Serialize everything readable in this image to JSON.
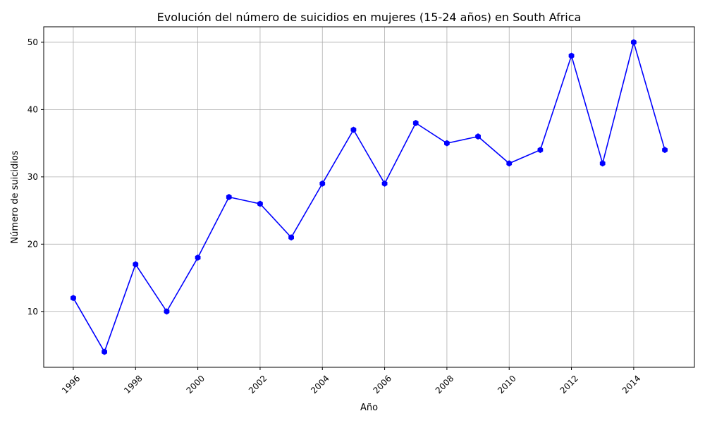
{
  "chart_data": {
    "type": "line",
    "title": "Evolución del número de suicidios en mujeres (15-24 años) en South Africa",
    "xlabel": "Año",
    "ylabel": "Número de suicidios",
    "x": [
      1996,
      1997,
      1998,
      1999,
      2000,
      2001,
      2002,
      2003,
      2004,
      2005,
      2006,
      2007,
      2008,
      2009,
      2010,
      2011,
      2012,
      2013,
      2014,
      2015
    ],
    "series": [
      {
        "color": "#0000ff",
        "marker": "hexagon",
        "values": [
          12,
          4,
          17,
          10,
          18,
          27,
          26,
          21,
          29,
          37,
          29,
          38,
          35,
          36,
          32,
          34,
          48,
          32,
          50,
          34
        ]
      }
    ],
    "xticks": [
      "1996",
      "1998",
      "2000",
      "2002",
      "2004",
      "2006",
      "2008",
      "2010",
      "2012",
      "2014"
    ],
    "yticks": [
      "10",
      "20",
      "30",
      "40",
      "50"
    ],
    "xlim": [
      1995.05,
      2015.95
    ],
    "ylim": [
      1.7,
      52.3
    ],
    "grid": true,
    "xtick_rotation": 45
  }
}
